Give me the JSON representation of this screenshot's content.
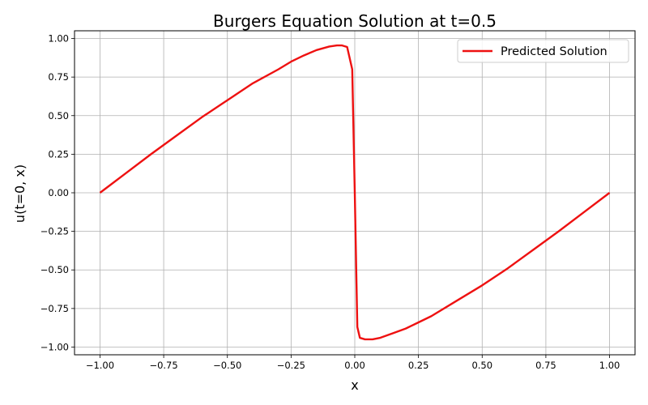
{
  "chart_data": {
    "type": "line",
    "title": "Burgers Equation Solution at t=0.5",
    "xlabel": "x",
    "ylabel": "u(t=0, x)",
    "xlim": [
      -1.1,
      1.1
    ],
    "ylim": [
      -1.05,
      1.05
    ],
    "grid": true,
    "legend_position": "top-right",
    "xticks": [
      -1.0,
      -0.75,
      -0.5,
      -0.25,
      0.0,
      0.25,
      0.5,
      0.75,
      1.0
    ],
    "xtick_labels": [
      "−1.00",
      "−0.75",
      "−0.50",
      "−0.25",
      "0.00",
      "0.25",
      "0.50",
      "0.75",
      "1.00"
    ],
    "yticks": [
      1.0,
      0.75,
      0.5,
      0.25,
      0.0,
      -0.25,
      -0.5,
      -0.75,
      -1.0
    ],
    "ytick_labels": [
      "1.00",
      "0.75",
      "0.50",
      "0.25",
      "0.00",
      "−0.25",
      "−0.50",
      "−0.75",
      "−1.00"
    ],
    "series": [
      {
        "name": "Predicted Solution",
        "color": "#ee1111",
        "x": [
          -1.0,
          -0.9,
          -0.8,
          -0.7,
          -0.6,
          -0.5,
          -0.4,
          -0.3,
          -0.25,
          -0.2,
          -0.15,
          -0.1,
          -0.07,
          -0.05,
          -0.03,
          -0.01,
          0.0,
          0.01,
          0.02,
          0.04,
          0.07,
          0.1,
          0.15,
          0.2,
          0.25,
          0.3,
          0.4,
          0.5,
          0.6,
          0.7,
          0.8,
          0.9,
          1.0
        ],
        "y": [
          0.0,
          0.125,
          0.25,
          0.37,
          0.49,
          0.6,
          0.71,
          0.8,
          0.85,
          0.89,
          0.925,
          0.948,
          0.955,
          0.955,
          0.945,
          0.8,
          0.0,
          -0.87,
          -0.94,
          -0.95,
          -0.95,
          -0.94,
          -0.91,
          -0.88,
          -0.84,
          -0.8,
          -0.7,
          -0.6,
          -0.49,
          -0.37,
          -0.25,
          -0.125,
          0.0
        ]
      }
    ]
  }
}
